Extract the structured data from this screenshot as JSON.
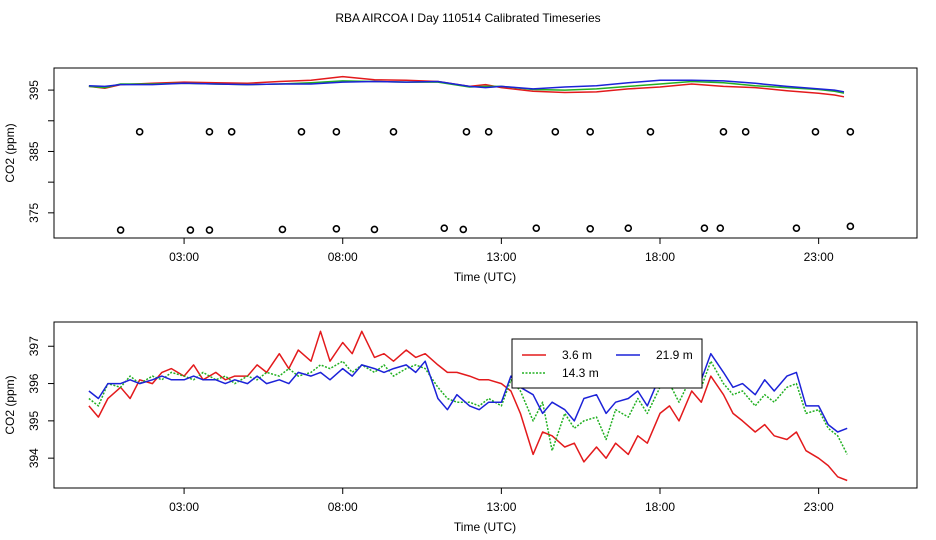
{
  "figure": {
    "title": "RBA AIRCOA I  Day 110514  Calibrated Timeseries"
  },
  "colors": {
    "red": "#e31a1c",
    "green": "#22b022",
    "blue": "#1c22d8",
    "black": "#000000"
  },
  "chart_data": [
    {
      "type": "line",
      "panel": "top",
      "xlabel": "Time (UTC)",
      "ylabel": "CO2 (ppm)",
      "xlim": [
        -1.1,
        26.1
      ],
      "ylim": [
        370.9,
        398.6
      ],
      "xticks": [
        3,
        8,
        13,
        18,
        23
      ],
      "xtick_labels": [
        "03:00",
        "08:00",
        "13:00",
        "18:00",
        "23:00"
      ],
      "yticks": [
        375,
        380,
        385,
        390,
        395
      ],
      "ytick_labels": [
        "375",
        "",
        "385",
        "",
        "395"
      ],
      "series": [
        {
          "name": "3.6 m",
          "color": "#e31a1c",
          "x": [
            0.0,
            0.5,
            1.0,
            2.0,
            3.0,
            4.0,
            5.0,
            6.0,
            7.0,
            8.0,
            9.0,
            10.0,
            11.0,
            12.0,
            12.5,
            13.0,
            14.0,
            15.0,
            16.0,
            17.0,
            18.0,
            19.0,
            20.0,
            21.0,
            22.0,
            23.0,
            23.5,
            23.8
          ],
          "y": [
            395.6,
            395.3,
            395.9,
            396.1,
            396.3,
            396.2,
            396.1,
            396.4,
            396.6,
            397.2,
            396.7,
            396.6,
            396.4,
            395.6,
            395.9,
            395.4,
            394.8,
            394.6,
            394.7,
            395.2,
            395.5,
            396.0,
            395.6,
            395.4,
            394.9,
            394.5,
            394.2,
            393.9
          ]
        },
        {
          "name": "14.3 m",
          "color": "#22b022",
          "x": [
            0.0,
            0.5,
            1.0,
            2.0,
            3.0,
            4.0,
            5.0,
            6.0,
            7.0,
            8.0,
            9.0,
            10.0,
            11.0,
            12.0,
            12.5,
            13.0,
            14.0,
            15.0,
            16.0,
            17.0,
            18.0,
            19.0,
            20.0,
            21.0,
            22.0,
            23.0,
            23.5,
            23.8
          ],
          "y": [
            395.6,
            395.4,
            396.0,
            396.0,
            396.1,
            396.0,
            395.9,
            396.0,
            396.2,
            396.5,
            396.4,
            396.3,
            396.3,
            395.5,
            395.6,
            395.6,
            395.1,
            395.0,
            395.2,
            395.6,
            396.0,
            396.4,
            396.2,
            395.7,
            395.4,
            395.1,
            394.8,
            394.5
          ]
        },
        {
          "name": "21.9 m",
          "color": "#1c22d8",
          "x": [
            0.0,
            0.5,
            1.0,
            2.0,
            3.0,
            4.0,
            5.0,
            6.0,
            7.0,
            8.0,
            9.0,
            10.0,
            11.0,
            12.0,
            12.5,
            13.0,
            14.0,
            15.0,
            16.0,
            17.0,
            18.0,
            19.0,
            20.0,
            21.0,
            22.0,
            23.0,
            23.5,
            23.8
          ],
          "y": [
            395.7,
            395.6,
            395.9,
            395.9,
            396.1,
            396.0,
            395.9,
            396.0,
            396.0,
            396.3,
            396.4,
            396.3,
            396.4,
            395.6,
            395.4,
            395.6,
            395.2,
            395.5,
            395.7,
            396.2,
            396.6,
            396.6,
            396.5,
            396.1,
            395.6,
            395.2,
            395.0,
            394.7
          ]
        },
        {
          "name": "open circles (upper row)",
          "marker": "circle",
          "color": "#000000",
          "x": [
            1.6,
            3.8,
            4.5,
            6.7,
            7.8,
            9.6,
            11.9,
            12.6,
            14.7,
            15.8,
            17.7,
            20.0,
            20.7,
            22.9,
            24.0
          ],
          "y": [
            388.2,
            388.2,
            388.2,
            388.2,
            388.2,
            388.2,
            388.2,
            388.2,
            388.2,
            388.2,
            388.2,
            388.2,
            388.2,
            388.2,
            388.2
          ]
        },
        {
          "name": "open circles (lower row)",
          "marker": "circle",
          "color": "#000000",
          "x": [
            1.0,
            3.2,
            3.8,
            6.1,
            7.8,
            9.0,
            11.2,
            11.8,
            14.1,
            15.8,
            17.0,
            19.4,
            19.9,
            22.3,
            24.0
          ],
          "y": [
            372.2,
            372.2,
            372.2,
            372.3,
            372.4,
            372.3,
            372.5,
            372.3,
            372.5,
            372.4,
            372.5,
            372.5,
            372.5,
            372.5,
            372.8
          ]
        }
      ]
    },
    {
      "type": "line",
      "panel": "bottom",
      "xlabel": "Time (UTC)",
      "ylabel": "CO2 (ppm)",
      "xlim": [
        -1.1,
        26.1
      ],
      "ylim": [
        393.2,
        397.65
      ],
      "xticks": [
        3,
        8,
        13,
        18,
        23
      ],
      "xtick_labels": [
        "03:00",
        "08:00",
        "13:00",
        "18:00",
        "23:00"
      ],
      "yticks": [
        394,
        395,
        396,
        397
      ],
      "ytick_labels": [
        "394",
        "395",
        "396",
        "397"
      ],
      "legend": {
        "position": "top-center",
        "entries": [
          "3.6 m",
          "21.9 m",
          "14.3 m"
        ]
      },
      "series": [
        {
          "name": "3.6 m",
          "color": "#e31a1c",
          "x": [
            0.0,
            0.3,
            0.6,
            1.0,
            1.3,
            1.6,
            2.0,
            2.3,
            2.6,
            3.0,
            3.3,
            3.6,
            4.0,
            4.3,
            4.6,
            5.0,
            5.3,
            5.6,
            6.0,
            6.3,
            6.6,
            7.0,
            7.3,
            7.6,
            8.0,
            8.3,
            8.6,
            9.0,
            9.3,
            9.6,
            10.0,
            10.3,
            10.6,
            11.0,
            11.3,
            11.6,
            12.0,
            12.3,
            12.6,
            13.0,
            13.3,
            13.6,
            14.0,
            14.3,
            14.6,
            15.0,
            15.3,
            15.6,
            16.0,
            16.3,
            16.6,
            17.0,
            17.3,
            17.6,
            18.0,
            18.3,
            18.6,
            19.0,
            19.3,
            19.6,
            20.0,
            20.3,
            20.6,
            21.0,
            21.3,
            21.6,
            22.0,
            22.3,
            22.6,
            23.0,
            23.3,
            23.6,
            23.9
          ],
          "y": [
            395.4,
            395.1,
            395.6,
            395.9,
            395.6,
            396.1,
            396.0,
            396.3,
            396.4,
            396.2,
            396.5,
            396.1,
            396.3,
            396.1,
            396.2,
            396.2,
            396.5,
            396.3,
            396.8,
            396.4,
            396.9,
            396.6,
            397.4,
            396.6,
            397.1,
            396.8,
            397.4,
            396.7,
            396.8,
            396.6,
            396.9,
            396.7,
            396.8,
            396.5,
            396.3,
            396.3,
            396.2,
            396.1,
            396.1,
            396.0,
            395.8,
            395.2,
            394.1,
            394.7,
            394.6,
            394.3,
            394.4,
            393.9,
            394.3,
            394.0,
            394.4,
            394.1,
            394.6,
            394.4,
            395.2,
            395.4,
            395.0,
            395.8,
            395.5,
            396.2,
            395.7,
            395.2,
            395.0,
            394.7,
            394.9,
            394.6,
            394.5,
            394.7,
            394.2,
            394.0,
            393.8,
            393.5,
            393.4
          ]
        },
        {
          "name": "14.3 m",
          "color": "#22b022",
          "x": [
            0.0,
            0.3,
            0.6,
            1.0,
            1.3,
            1.6,
            2.0,
            2.3,
            2.6,
            3.0,
            3.3,
            3.6,
            4.0,
            4.3,
            4.6,
            5.0,
            5.3,
            5.6,
            6.0,
            6.3,
            6.6,
            7.0,
            7.3,
            7.6,
            8.0,
            8.3,
            8.6,
            9.0,
            9.3,
            9.6,
            10.0,
            10.3,
            10.6,
            11.0,
            11.3,
            11.6,
            12.0,
            12.3,
            12.6,
            13.0,
            13.3,
            13.6,
            14.0,
            14.3,
            14.6,
            15.0,
            15.3,
            15.6,
            16.0,
            16.3,
            16.6,
            17.0,
            17.3,
            17.6,
            18.0,
            18.3,
            18.6,
            19.0,
            19.3,
            19.6,
            20.0,
            20.3,
            20.6,
            21.0,
            21.3,
            21.6,
            22.0,
            22.3,
            22.6,
            23.0,
            23.3,
            23.6,
            23.9
          ],
          "y": [
            395.6,
            395.4,
            396.0,
            395.9,
            396.2,
            396.0,
            396.2,
            396.1,
            396.3,
            396.2,
            396.1,
            396.3,
            396.1,
            396.2,
            396.0,
            396.2,
            396.1,
            396.3,
            396.2,
            396.4,
            396.2,
            396.3,
            396.5,
            396.4,
            396.6,
            396.3,
            396.5,
            396.3,
            396.5,
            396.2,
            396.4,
            396.5,
            396.4,
            395.9,
            395.6,
            395.5,
            395.5,
            395.4,
            395.6,
            395.4,
            396.1,
            395.8,
            395.0,
            395.5,
            394.2,
            395.2,
            394.8,
            395.0,
            395.1,
            394.5,
            395.3,
            395.1,
            395.6,
            395.2,
            395.9,
            396.0,
            395.5,
            396.2,
            395.9,
            396.6,
            396.0,
            395.7,
            395.8,
            395.4,
            395.7,
            395.5,
            395.9,
            396.0,
            395.2,
            395.3,
            394.8,
            394.6,
            394.1
          ]
        },
        {
          "name": "21.9 m",
          "color": "#1c22d8",
          "x": [
            0.0,
            0.3,
            0.6,
            1.0,
            1.3,
            1.6,
            2.0,
            2.3,
            2.6,
            3.0,
            3.3,
            3.6,
            4.0,
            4.3,
            4.6,
            5.0,
            5.3,
            5.6,
            6.0,
            6.3,
            6.6,
            7.0,
            7.3,
            7.6,
            8.0,
            8.3,
            8.6,
            9.0,
            9.3,
            9.6,
            10.0,
            10.3,
            10.6,
            11.0,
            11.3,
            11.6,
            12.0,
            12.3,
            12.6,
            13.0,
            13.3,
            13.6,
            14.0,
            14.3,
            14.6,
            15.0,
            15.3,
            15.6,
            16.0,
            16.3,
            16.6,
            17.0,
            17.3,
            17.6,
            18.0,
            18.3,
            18.6,
            19.0,
            19.3,
            19.6,
            20.0,
            20.3,
            20.6,
            21.0,
            21.3,
            21.6,
            22.0,
            22.3,
            22.6,
            23.0,
            23.3,
            23.6,
            23.9
          ],
          "y": [
            395.8,
            395.6,
            396.0,
            396.0,
            396.1,
            396.0,
            396.1,
            396.2,
            396.1,
            396.1,
            396.2,
            396.1,
            396.1,
            396.0,
            396.1,
            396.0,
            396.2,
            396.0,
            396.1,
            396.0,
            396.3,
            396.2,
            396.3,
            396.1,
            396.4,
            396.2,
            396.5,
            396.4,
            396.3,
            396.4,
            396.5,
            396.3,
            396.6,
            395.6,
            395.3,
            395.7,
            395.4,
            395.3,
            395.5,
            395.5,
            396.2,
            395.9,
            395.7,
            395.2,
            395.5,
            395.3,
            395.0,
            395.6,
            395.7,
            395.2,
            395.5,
            395.6,
            395.8,
            395.4,
            396.2,
            396.4,
            395.9,
            396.5,
            396.1,
            396.8,
            396.3,
            395.9,
            396.0,
            395.7,
            396.1,
            395.8,
            396.2,
            396.3,
            395.4,
            395.4,
            394.9,
            394.7,
            394.8
          ]
        }
      ]
    }
  ]
}
